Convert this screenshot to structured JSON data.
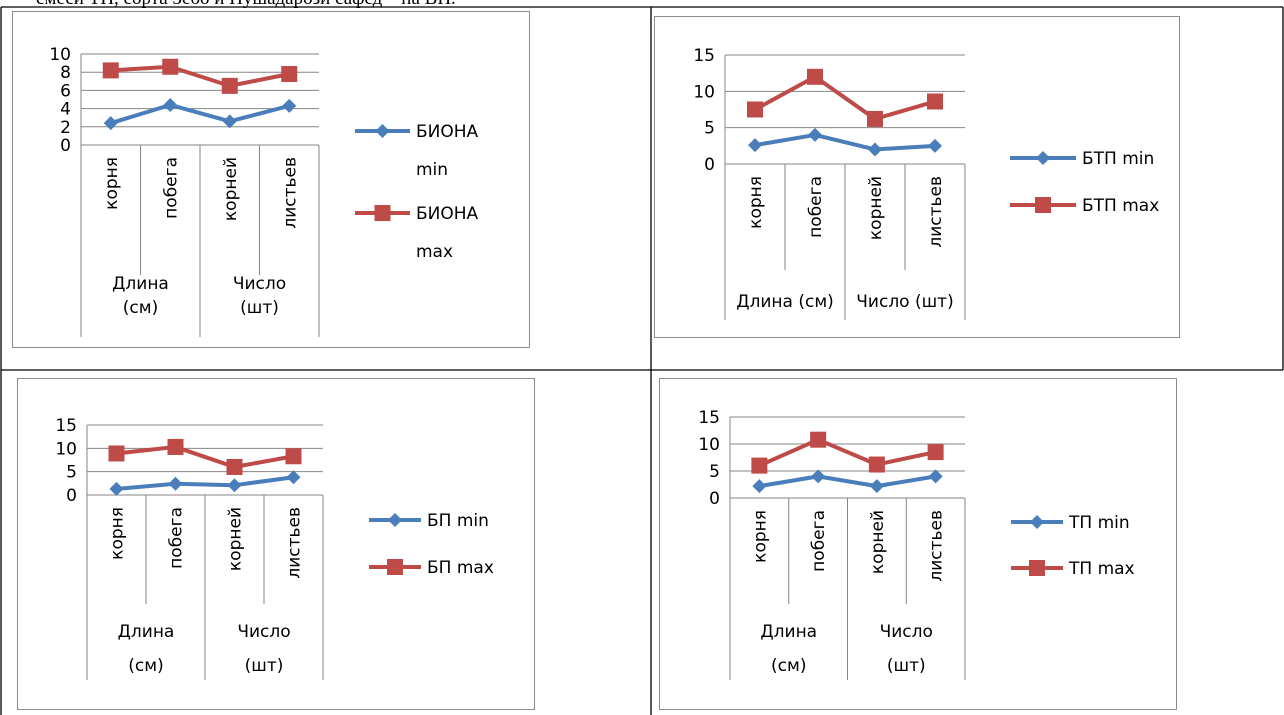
{
  "caption": "смеси ТП, сорта Зебо и Пушадарози сафед – на ВП.",
  "series_colors": {
    "min": "#4A7EBB",
    "max": "#BE4B48"
  },
  "chart_data": [
    {
      "type": "line",
      "categories": [
        "корня",
        "побега",
        "корней",
        "листьев"
      ],
      "groups": [
        {
          "label_lines": [
            "Длина",
            "(см)"
          ],
          "span": 2
        },
        {
          "label_lines": [
            "Число",
            "(шт)"
          ],
          "span": 2
        }
      ],
      "series": [
        {
          "name": "БИОНА min",
          "values": [
            2.4,
            4.4,
            2.6,
            4.3
          ],
          "marker": "diamond"
        },
        {
          "name": "БИОНА max",
          "values": [
            8.2,
            8.6,
            6.5,
            7.8
          ],
          "marker": "square"
        }
      ],
      "legend_lines": [
        [
          "БИОНА",
          "min"
        ],
        [
          "БИОНА",
          "max"
        ]
      ],
      "yticks": [
        "0",
        "2",
        "4",
        "6",
        "8",
        "10"
      ],
      "ylim": [
        0,
        10
      ],
      "grid": true,
      "legend": "right"
    },
    {
      "type": "line",
      "categories": [
        "корня",
        "побега",
        "корней",
        "листьев"
      ],
      "groups": [
        {
          "label_lines": [
            "Длина (см)"
          ],
          "span": 2
        },
        {
          "label_lines": [
            "Число (шт)"
          ],
          "span": 2
        }
      ],
      "series": [
        {
          "name": "БТП min",
          "values": [
            2.6,
            4.0,
            2.0,
            2.5
          ],
          "marker": "diamond"
        },
        {
          "name": "БТП max",
          "values": [
            7.5,
            12.0,
            6.2,
            8.6
          ],
          "marker": "square"
        }
      ],
      "legend_lines": [
        [
          "БТП min"
        ],
        [
          "БТП max"
        ]
      ],
      "yticks": [
        "0",
        "5",
        "10",
        "15"
      ],
      "ylim": [
        0,
        15
      ],
      "grid": true,
      "legend": "right"
    },
    {
      "type": "line",
      "categories": [
        "корня",
        "побега",
        "корней",
        "листьев"
      ],
      "groups": [
        {
          "label_lines": [
            "Длина",
            "(см)"
          ],
          "span": 2
        },
        {
          "label_lines": [
            "Число",
            "(шт)"
          ],
          "span": 2
        }
      ],
      "series": [
        {
          "name": "БП min",
          "values": [
            1.3,
            2.4,
            2.1,
            3.8
          ],
          "marker": "diamond"
        },
        {
          "name": "БП max",
          "values": [
            8.9,
            10.3,
            6.0,
            8.3
          ],
          "marker": "square"
        }
      ],
      "legend_lines": [
        [
          "БП min"
        ],
        [
          "БП max"
        ]
      ],
      "yticks": [
        "0",
        "5",
        "10",
        "15"
      ],
      "ylim": [
        0,
        15
      ],
      "grid": true,
      "legend": "right"
    },
    {
      "type": "line",
      "categories": [
        "корня",
        "побега",
        "корней",
        "листьев"
      ],
      "groups": [
        {
          "label_lines": [
            "Длина",
            "(см)"
          ],
          "span": 2
        },
        {
          "label_lines": [
            "Число",
            "(шт)"
          ],
          "span": 2
        }
      ],
      "series": [
        {
          "name": "ТП min",
          "values": [
            2.2,
            4.0,
            2.2,
            4.0
          ],
          "marker": "diamond"
        },
        {
          "name": "ТП max",
          "values": [
            6.0,
            10.8,
            6.2,
            8.5
          ],
          "marker": "square"
        }
      ],
      "legend_lines": [
        [
          "ТП min"
        ],
        [
          "ТП max"
        ]
      ],
      "yticks": [
        "0",
        "5",
        "10",
        "15"
      ],
      "ylim": [
        0,
        15
      ],
      "grid": true,
      "legend": "right"
    }
  ]
}
